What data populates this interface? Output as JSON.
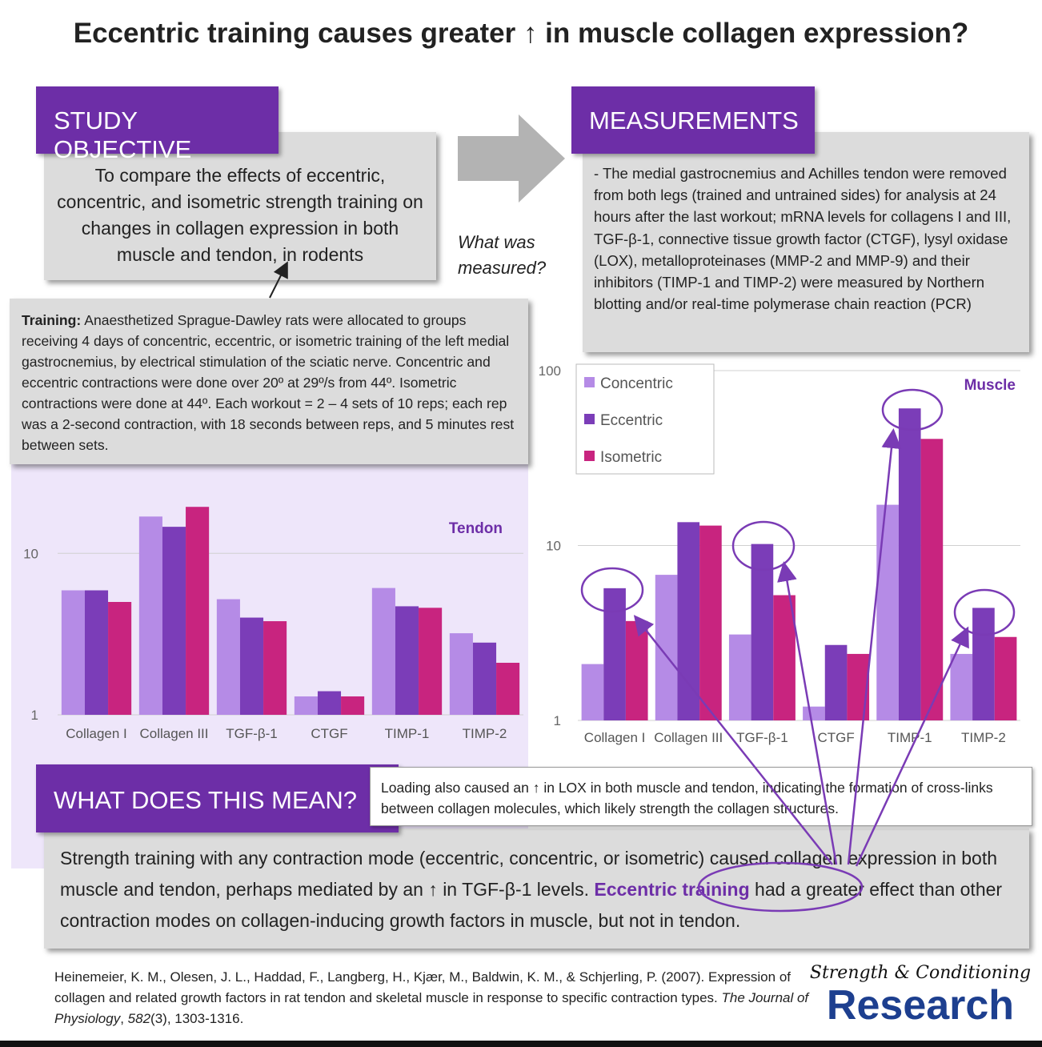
{
  "title": "Eccentric training causes greater ↑ in muscle collagen expression?",
  "objective": {
    "heading": "STUDY OBJECTIVE",
    "text": "To compare the effects of eccentric, concentric, and isometric strength training on changes in collagen expression in both muscle and tendon, in rodents"
  },
  "question": "What was measured?",
  "measurements": {
    "heading": "MEASUREMENTS",
    "text": "- The medial gastrocnemius and Achilles tendon were removed from both legs (trained and untrained sides) for analysis at 24 hours after the last workout; mRNA levels for collagens I and III, TGF-β-1, connective tissue growth factor (CTGF), lysyl oxidase (LOX), metalloproteinases (MMP-2 and MMP-9) and their inhibitors (TIMP-1 and TIMP-2) were measured by Northern blotting and/or real-time polymerase chain reaction (PCR)"
  },
  "training": {
    "label": "Training:",
    "text": "Anaesthetized Sprague-Dawley rats were allocated to groups receiving 4 days of concentric, eccentric, or isometric training of the left medial gastrocnemius, by electrical stimulation of the sciatic nerve. Concentric and eccentric contractions were done over 20º at 29º/s from 44º. Isometric contractions were done at 44º. Each workout = 2 – 4 sets of 10 reps; each rep was a 2-second contraction, with 18 seconds between reps, and 5 minutes rest between sets."
  },
  "chart_data": [
    {
      "type": "bar",
      "label": "Tendon",
      "categories": [
        "Collagen I",
        "Collagen III",
        "TGF-β-1",
        "CTGF",
        "TIMP-1",
        "TIMP-2"
      ],
      "series": [
        {
          "color": "#b58be6",
          "values": [
            5.9,
            16.9,
            5.2,
            1.3,
            6.1,
            3.2
          ]
        },
        {
          "color": "#7b3db8",
          "values": [
            5.9,
            14.6,
            4.0,
            1.4,
            4.7,
            2.8
          ]
        },
        {
          "color": "#c8247f",
          "values": [
            5.0,
            19.4,
            3.8,
            1.3,
            4.6,
            2.1
          ]
        }
      ],
      "ylim": [
        1,
        25
      ],
      "yticks": [
        1,
        10
      ],
      "log_scale": true,
      "grid": true
    },
    {
      "type": "bar",
      "label": "Muscle",
      "categories": [
        "Collagen I",
        "Collagen III",
        "TGF-β-1",
        "CTGF",
        "TIMP-1",
        "TIMP-2"
      ],
      "series": [
        {
          "name": "Concentric",
          "color": "#b58be6",
          "values": [
            2.1,
            6.8,
            3.1,
            1.2,
            17.1,
            2.4
          ]
        },
        {
          "name": "Eccentric",
          "color": "#7b3db8",
          "values": [
            5.7,
            13.6,
            10.2,
            2.7,
            60.8,
            4.4
          ]
        },
        {
          "name": "Isometric",
          "color": "#c8247f",
          "values": [
            3.7,
            13.0,
            5.2,
            2.4,
            40.7,
            3.0
          ]
        }
      ],
      "ylim": [
        1,
        100
      ],
      "yticks": [
        1,
        10,
        100
      ],
      "log_scale": true,
      "grid": true,
      "legend": "top-left"
    }
  ],
  "meaning": {
    "heading": "WHAT DOES THIS MEAN?",
    "note": "Loading also caused an ↑ in LOX in both muscle and tendon, indicating the formation of cross-links between collagen molecules, which likely strength the collagen structures.",
    "text_before": "Strength training with any contraction mode (eccentric, concentric, or isometric) caused collagen expression in both muscle and tendon, perhaps mediated by an ↑ in TGF-β-1 levels.",
    "highlight": "Eccentric training",
    "text_after": "had a greater effect than other contraction modes on collagen-inducing growth factors in muscle, but not in tendon."
  },
  "citation": {
    "text": "Heinemeier, K. M., Olesen, J. L., Haddad, F., Langberg, H., Kjær, M., Baldwin, K. M., & Schjerling, P. (2007). Expression of collagen and related growth factors in rat tendon and skeletal muscle in response to specific contraction types.",
    "journal": "The Journal of Physiology",
    "volume": "582",
    "pages": "(3), 1303-1316."
  },
  "logo": {
    "script": "Strength & Conditioning",
    "word": "Research"
  }
}
